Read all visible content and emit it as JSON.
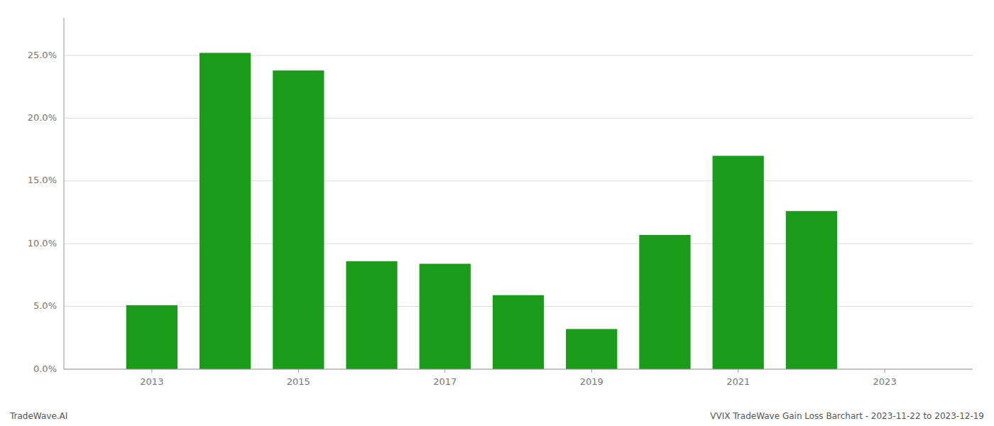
{
  "chart_data": {
    "type": "bar",
    "title": "VVIX TradeWave Gain Loss Barchart - 2023-11-22 to 2023-12-19",
    "annotations": [
      "TradeWave.AI"
    ],
    "x": [
      2013,
      2014,
      2015,
      2016,
      2017,
      2018,
      2019,
      2020,
      2021,
      2022
    ],
    "values": [
      0.051,
      0.252,
      0.238,
      0.086,
      0.084,
      0.059,
      0.032,
      0.107,
      0.17,
      0.126
    ],
    "color": "#1a9c1a",
    "xlim": [
      2011.8,
      2024.2
    ],
    "xticks": [
      2013,
      2015,
      2017,
      2019,
      2021,
      2023
    ],
    "ylim": [
      0,
      0.28
    ],
    "yticks": [
      {
        "value": 0.0,
        "label": "0.0%"
      },
      {
        "value": 0.05,
        "label": "5.0%"
      },
      {
        "value": 0.1,
        "label": "10.0%"
      },
      {
        "value": 0.15,
        "label": "15.0%"
      },
      {
        "value": 0.2,
        "label": "20.0%"
      },
      {
        "value": 0.25,
        "label": "25.0%"
      }
    ],
    "grid": true
  }
}
